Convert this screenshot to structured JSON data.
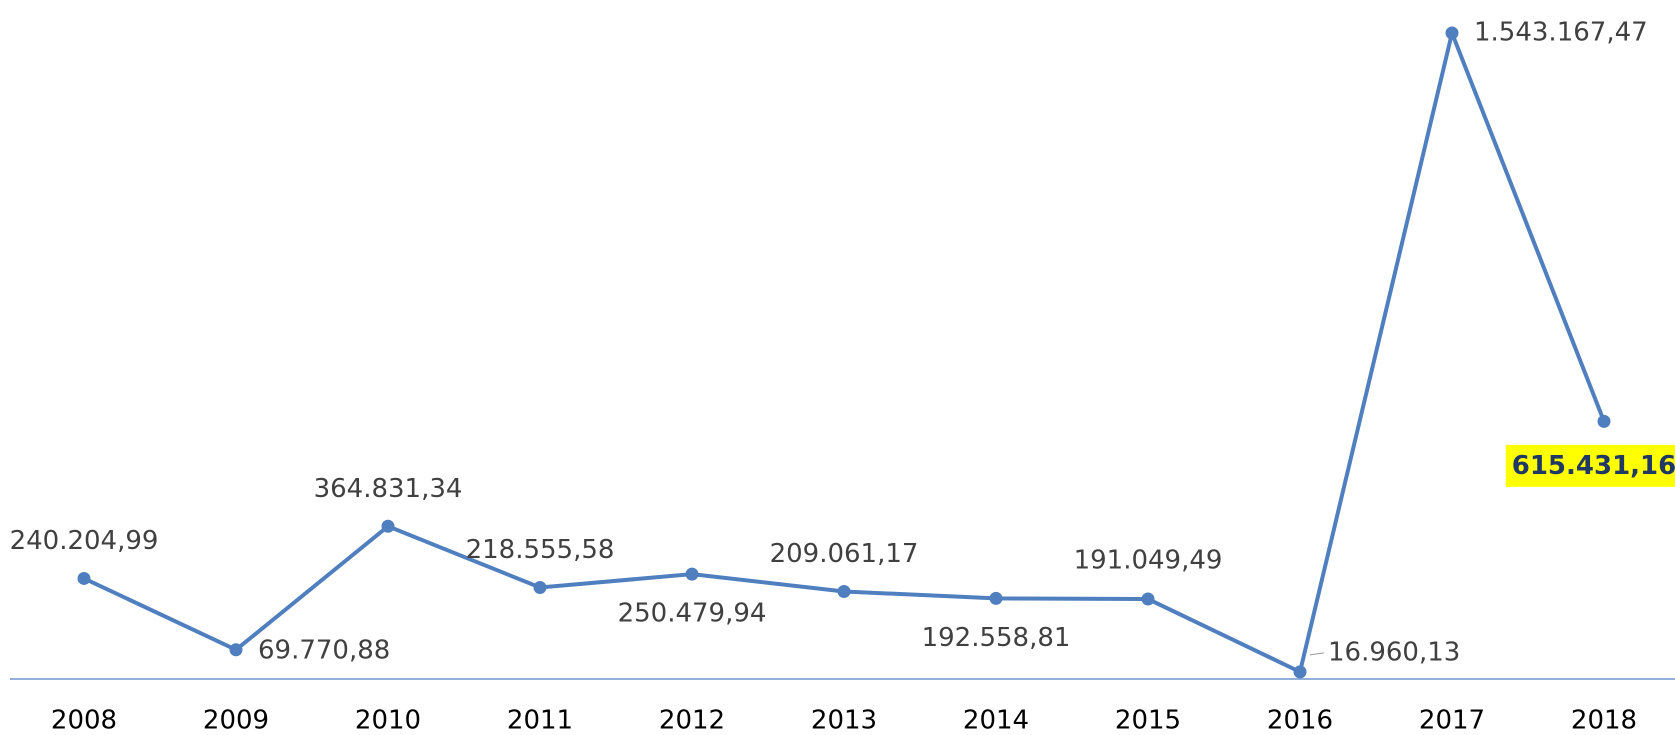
{
  "chart_data": {
    "type": "line",
    "categories": [
      "2008",
      "2009",
      "2010",
      "2011",
      "2012",
      "2013",
      "2014",
      "2015",
      "2016",
      "2017",
      "2018"
    ],
    "values": [
      240204.99,
      69770.88,
      364831.34,
      218555.58,
      250479.94,
      209061.17,
      192558.81,
      191049.49,
      16960.13,
      1543167.47,
      615431.16
    ],
    "value_labels": [
      "240.204,99",
      "69.770,88",
      "364.831,34",
      "218.555,58",
      "250.479,94",
      "209.061,17",
      "192.558,81",
      "191.049,49",
      "16.960,13",
      "1.543.167,47",
      "615.431,16"
    ],
    "color": "#4f7fbf"
  }
}
